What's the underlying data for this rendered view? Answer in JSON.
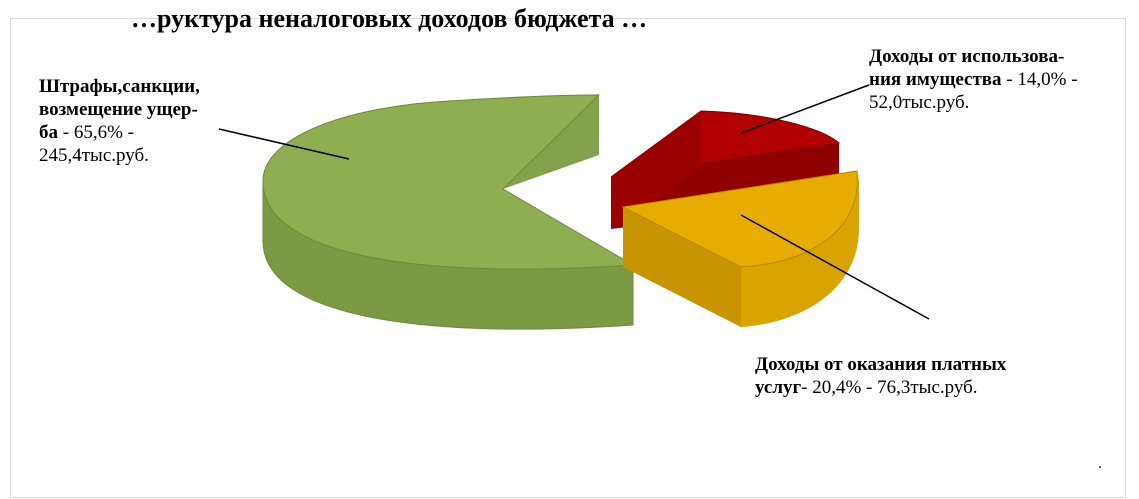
{
  "chart_data": {
    "type": "pie",
    "title": "…руктура неналоговых доходов бюджета …",
    "slices": [
      {
        "name": "Штрафы,санкции, возмещение ущерба",
        "label_bold": [
          "Штрафы,санкции,",
          "возмещение ущер-",
          "ба"
        ],
        "label_rest": [
          " - 65,6% -",
          "245,4тыс.руб."
        ],
        "percent": 65.6,
        "value": 245.4,
        "unit": "тыс.руб.",
        "color": "#8fae52"
      },
      {
        "name": "Доходы от использования имущества",
        "label_bold": [
          "Доходы от использова-",
          "ния имущества"
        ],
        "label_rest": [
          " - 14,0% -",
          "52,0тыс.руб."
        ],
        "percent": 14.0,
        "value": 52.0,
        "unit": "тыс.руб.",
        "color": "#b20000"
      },
      {
        "name": "Доходы от оказания платных услуг",
        "label_bold": [
          "Доходы от оказания платных",
          "услуг"
        ],
        "label_rest": [
          "- 20,4% - 76,3тыс.руб."
        ],
        "percent": 20.4,
        "value": 76.3,
        "unit": "тыс.руб.",
        "color": "#e6ac00"
      }
    ],
    "legend": "none",
    "dot_mark": "."
  }
}
